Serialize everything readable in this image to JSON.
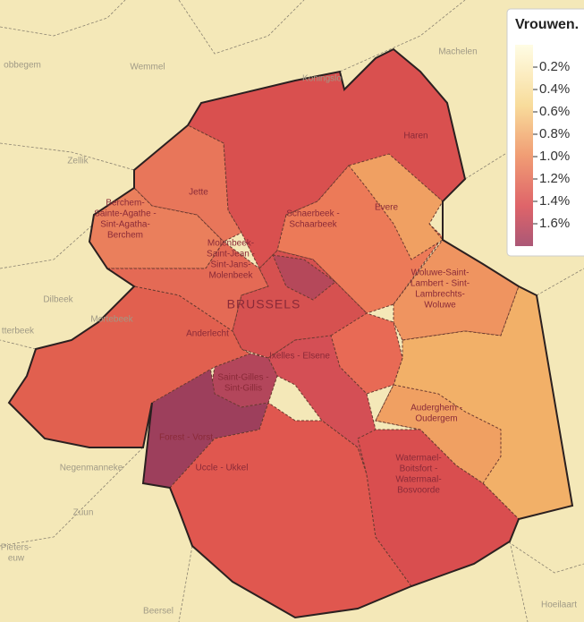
{
  "map": {
    "districts": [
      {
        "lines": [
          "Haren"
        ]
      },
      {
        "lines": [
          "Jette"
        ]
      },
      {
        "lines": [
          "Berchem-",
          "Sainte-Agathe -",
          "Sint-Agatha-",
          "Berchem"
        ]
      },
      {
        "lines": [
          "Evere"
        ]
      },
      {
        "lines": [
          "Schaerbeek -",
          "Schaarbeek"
        ]
      },
      {
        "lines": [
          "Molenbeek-",
          "Saint-Jean -",
          "Sint-Jans-",
          "Molenbeek"
        ]
      },
      {
        "lines": [
          "BRUSSELS"
        ]
      },
      {
        "lines": [
          "Woluwe-Saint-",
          "Lambert - Sint-",
          "Lambrechts-",
          "Woluwe"
        ]
      },
      {
        "lines": [
          "Anderlecht"
        ]
      },
      {
        "lines": [
          "Ixelles - Elsene"
        ]
      },
      {
        "lines": [
          "Saint-Gilles -",
          "Sint-Gillis"
        ]
      },
      {
        "lines": [
          "Auderghem -",
          "Oudergem"
        ]
      },
      {
        "lines": [
          "Forest - Vorst"
        ]
      },
      {
        "lines": [
          "Uccle - Ukkel"
        ]
      },
      {
        "lines": [
          "Watermael-",
          "Boitsfort -",
          "Watermaal-",
          "Bosvoorde"
        ]
      }
    ],
    "places": [
      {
        "lines": [
          "Wemmel"
        ]
      },
      {
        "lines": [
          "Machelen"
        ]
      },
      {
        "lines": [
          "Koningslo"
        ]
      },
      {
        "lines": [
          "obbegem"
        ]
      },
      {
        "lines": [
          "Zellik"
        ]
      },
      {
        "lines": [
          "Dilbeek"
        ]
      },
      {
        "lines": [
          "Mortebeek"
        ]
      },
      {
        "lines": [
          "tterbeek"
        ]
      },
      {
        "lines": [
          "Negenmanneke"
        ]
      },
      {
        "lines": [
          "Zuun"
        ]
      },
      {
        "lines": [
          "Pieters-",
          "euw"
        ]
      },
      {
        "lines": [
          "Beersel"
        ]
      },
      {
        "lines": [
          "Hoeilaart"
        ]
      }
    ],
    "legend": {
      "title": "Vrouwen.",
      "range": [
        0,
        1.8
      ],
      "ticks": [
        {
          "value": 0.2,
          "label": "0.2%"
        },
        {
          "value": 0.4,
          "label": "0.4%"
        },
        {
          "value": 0.6,
          "label": "0.6%"
        },
        {
          "value": 0.8,
          "label": "0.8%"
        },
        {
          "value": 1.0,
          "label": "1.0%"
        },
        {
          "value": 1.2,
          "label": "1.2%"
        },
        {
          "value": 1.4,
          "label": "1.4%"
        },
        {
          "value": 1.6,
          "label": "1.6%"
        }
      ]
    }
  }
}
